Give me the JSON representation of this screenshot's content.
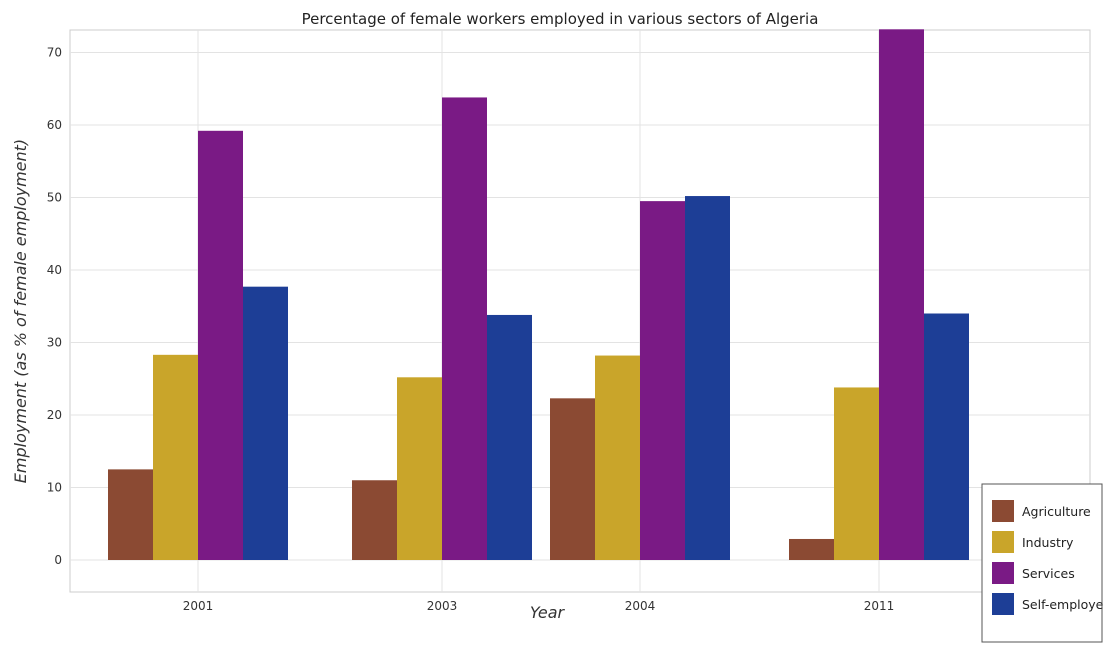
{
  "chart_data": {
    "type": "bar",
    "title": "Percentage of female workers employed in various sectors of Algeria",
    "xlabel": "Year",
    "ylabel": "Employment (as % of female employment)",
    "categories": [
      "2001",
      "2003",
      "2004",
      "2011"
    ],
    "ylim": [
      0,
      77
    ],
    "yticks": [
      "0",
      "10",
      "20",
      "30",
      "40",
      "50",
      "60",
      "70"
    ],
    "grid": true,
    "legend_position": "bottom-right",
    "series": [
      {
        "name": "Agriculture",
        "color": "#8b4a33",
        "values": [
          12.5,
          11.0,
          22.3,
          2.9
        ]
      },
      {
        "name": "Industry",
        "color": "#c9a52a",
        "values": [
          28.3,
          25.2,
          28.2,
          23.8
        ]
      },
      {
        "name": "Services",
        "color": "#7a1a85",
        "values": [
          59.2,
          63.8,
          49.5,
          73.2
        ]
      },
      {
        "name": "Self-employed",
        "color": "#1d3e96",
        "values": [
          37.7,
          33.8,
          50.2,
          34.0
        ]
      }
    ]
  }
}
